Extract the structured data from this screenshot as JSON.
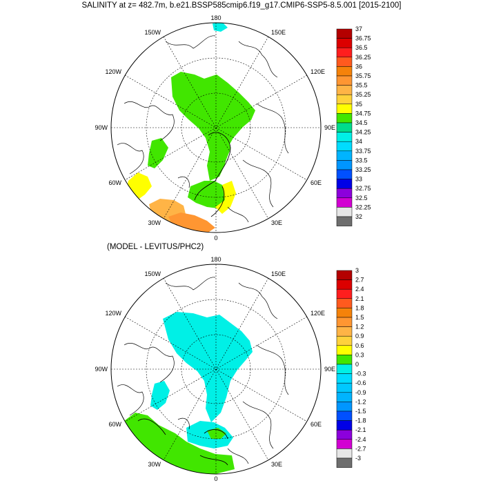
{
  "title": "SALINITY at z= 482.7m, b.e21.BSSP585cmip6.f19_g17.CMIP6-SSP5-8.5.001 [2015-2100]",
  "subtitle": "(MODEL - LEVITUS/PHC2)",
  "top_panel": {
    "lon_labels": {
      "n": "180",
      "s": "0",
      "w": "90W",
      "e": "90E",
      "nw1": "150W",
      "nw2": "120W",
      "ne1": "150E",
      "ne2": "120E",
      "sw1": "60W",
      "sw2": "30W",
      "se1": "60E",
      "se2": "30E"
    },
    "colorbar": {
      "labels": [
        "37",
        "36.75",
        "36.5",
        "36.25",
        "36",
        "35.75",
        "35.5",
        "35.25",
        "35",
        "34.75",
        "34.5",
        "34.25",
        "34",
        "33.75",
        "33.5",
        "33.25",
        "33",
        "32.75",
        "32.5",
        "32.25",
        "32"
      ],
      "colors": [
        "#b40000",
        "#dc0000",
        "#ff1e1e",
        "#ff5a1e",
        "#f5820a",
        "#ff9632",
        "#ffb446",
        "#ffd23c",
        "#ffff00",
        "#41e600",
        "#00dc8c",
        "#00f0e6",
        "#00dcff",
        "#00b4ff",
        "#0096ff",
        "#0050ff",
        "#0000e6",
        "#8c00dc",
        "#d200d2",
        "#e6e6e6",
        "#6e6e6e"
      ]
    }
  },
  "bottom_panel": {
    "lon_labels": {
      "n": "180",
      "s": "0",
      "w": "90W",
      "e": "90E",
      "nw1": "150W",
      "nw2": "120W",
      "ne1": "150E",
      "ne2": "120E",
      "sw1": "60W",
      "sw2": "30W",
      "se1": "60E",
      "se2": "30E"
    },
    "colorbar": {
      "labels": [
        "3",
        "2.7",
        "2.4",
        "2.1",
        "1.8",
        "1.5",
        "1.2",
        "0.9",
        "0.6",
        "0.3",
        "0",
        "-0.3",
        "-0.6",
        "-0.9",
        "-1.2",
        "-1.5",
        "-1.8",
        "-2.1",
        "-2.4",
        "-2.7",
        "-3"
      ],
      "colors": [
        "#b40000",
        "#dc0000",
        "#ff1e1e",
        "#ff5a1e",
        "#f5820a",
        "#ff9632",
        "#ffb446",
        "#ffd23c",
        "#ffff00",
        "#41e600",
        "#00f0e6",
        "#00dcff",
        "#00c8ff",
        "#00b4ff",
        "#0096ff",
        "#0050ff",
        "#0000e6",
        "#8c00dc",
        "#d200d2",
        "#e6e6e6",
        "#6e6e6e"
      ]
    }
  }
}
